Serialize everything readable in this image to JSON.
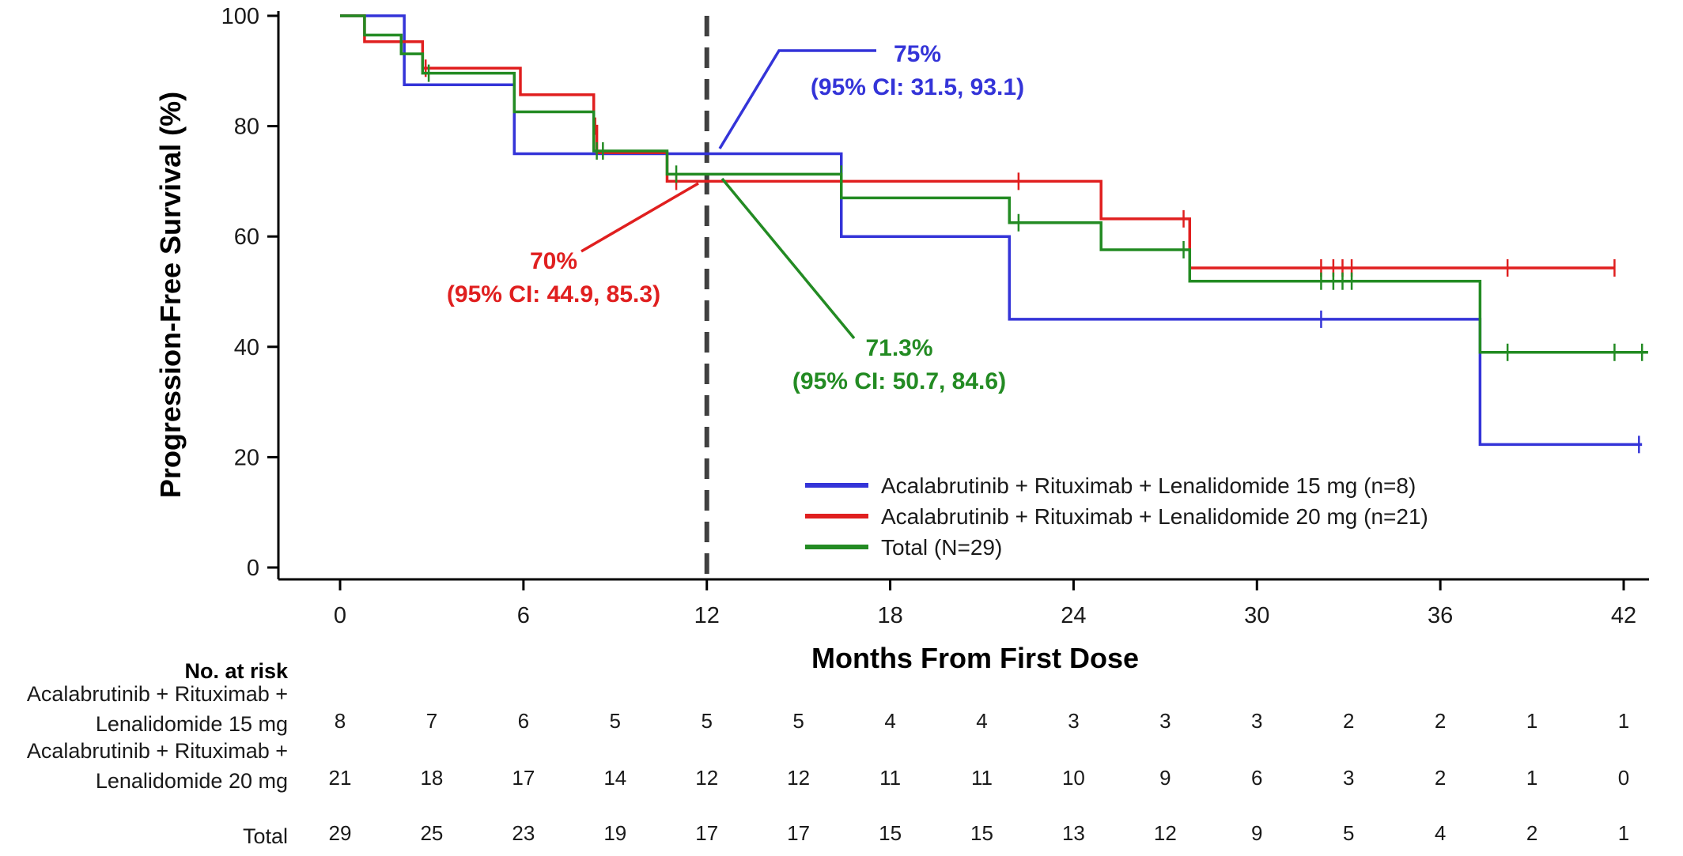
{
  "chart_data": {
    "type": "line",
    "subtype": "kaplan-meier-step",
    "title": "",
    "xlabel": "Months From First Dose",
    "ylabel": "Progression-Free Survival (%)",
    "xlim": [
      0,
      43
    ],
    "ylim": [
      0,
      100
    ],
    "xticks": [
      0,
      6,
      12,
      18,
      24,
      30,
      36,
      42
    ],
    "yticks": [
      0,
      20,
      40,
      60,
      80,
      100
    ],
    "grid": false,
    "legend_position": "bottom-right",
    "reference_line": {
      "x": 12,
      "style": "dashed",
      "color": "#404040"
    },
    "series": [
      {
        "name": "Acalabrutinib + Rituximab + Lenalidomide 15 mg (n=8)",
        "color": "#3434d8",
        "steps": [
          [
            0,
            100
          ],
          [
            2.1,
            87.5
          ],
          [
            5.7,
            75
          ],
          [
            16.4,
            60
          ],
          [
            21.9,
            45
          ],
          [
            37.3,
            22.3
          ],
          [
            42.6,
            22.3
          ]
        ],
        "censored": [
          [
            32.1,
            45
          ],
          [
            42.5,
            22.3
          ]
        ]
      },
      {
        "name": "Acalabrutinib + Rituximab + Lenalidomide 20 mg (n=21)",
        "color": "#e01f1f",
        "steps": [
          [
            0,
            100
          ],
          [
            0.8,
            95.3
          ],
          [
            2.7,
            90.5
          ],
          [
            5.9,
            85.7
          ],
          [
            8.3,
            80
          ],
          [
            8.4,
            75.2
          ],
          [
            10.7,
            70
          ],
          [
            24.9,
            63.2
          ],
          [
            27.8,
            54.3
          ],
          [
            41.7,
            54.3
          ]
        ],
        "censored": [
          [
            2.8,
            90.5
          ],
          [
            8.35,
            80
          ],
          [
            11,
            70
          ],
          [
            16.4,
            70
          ],
          [
            22.2,
            70
          ],
          [
            27.6,
            63.2
          ],
          [
            32.1,
            54.3
          ],
          [
            32.5,
            54.3
          ],
          [
            32.8,
            54.3
          ],
          [
            33.1,
            54.3
          ],
          [
            38.2,
            54.3
          ],
          [
            41.7,
            54.3
          ]
        ]
      },
      {
        "name": "Total (N=29)",
        "color": "#238b23",
        "steps": [
          [
            0,
            100
          ],
          [
            0.8,
            96.5
          ],
          [
            2,
            93.1
          ],
          [
            2.7,
            89.6
          ],
          [
            5.7,
            82.6
          ],
          [
            8.3,
            75.5
          ],
          [
            10.7,
            71.3
          ],
          [
            16.4,
            67
          ],
          [
            21.9,
            62.5
          ],
          [
            24.9,
            57.6
          ],
          [
            27.8,
            51.9
          ],
          [
            37.3,
            39
          ],
          [
            42.8,
            39
          ]
        ],
        "censored": [
          [
            2.9,
            89.6
          ],
          [
            8.4,
            75.5
          ],
          [
            8.6,
            75.5
          ],
          [
            11,
            71.3
          ],
          [
            16.4,
            71.3
          ],
          [
            22.2,
            62.5
          ],
          [
            27.6,
            57.6
          ],
          [
            32.1,
            51.9
          ],
          [
            32.5,
            51.9
          ],
          [
            32.8,
            51.9
          ],
          [
            33.1,
            51.9
          ],
          [
            38.2,
            39
          ],
          [
            41.7,
            39
          ],
          [
            42.6,
            39
          ]
        ]
      }
    ],
    "annotations": [
      {
        "id": "blue",
        "color": "#3434d8",
        "line1": "75%",
        "line2": "(95% CI: 31.5, 93.1)",
        "point": [
          12.3,
          75
        ]
      },
      {
        "id": "red",
        "color": "#e01f1f",
        "line1": "70%",
        "line2": "(95% CI: 44.9, 85.3)",
        "point": [
          11.7,
          70
        ]
      },
      {
        "id": "green",
        "color": "#238b23",
        "line1": "71.3%",
        "line2": "(95% CI: 50.7, 84.6)",
        "point": [
          12.3,
          71.3
        ]
      }
    ]
  },
  "risk_table": {
    "title": "No. at risk",
    "times": [
      0,
      3,
      6,
      9,
      12,
      15,
      18,
      21,
      24,
      27,
      30,
      33,
      36,
      39,
      42
    ],
    "rows": [
      {
        "label_line1": "Acalabrutinib + Rituximab +",
        "label_line2": "Lenalidomide 15 mg",
        "counts": [
          8,
          7,
          6,
          5,
          5,
          5,
          4,
          4,
          3,
          3,
          3,
          2,
          2,
          1,
          1
        ]
      },
      {
        "label_line1": "Acalabrutinib + Rituximab +",
        "label_line2": "Lenalidomide 20 mg",
        "counts": [
          21,
          18,
          17,
          14,
          12,
          12,
          11,
          11,
          10,
          9,
          6,
          3,
          2,
          1,
          0
        ]
      },
      {
        "label_line1": "",
        "label_line2": "Total",
        "counts": [
          29,
          25,
          23,
          19,
          17,
          17,
          15,
          15,
          13,
          12,
          9,
          5,
          4,
          2,
          1
        ]
      }
    ]
  }
}
